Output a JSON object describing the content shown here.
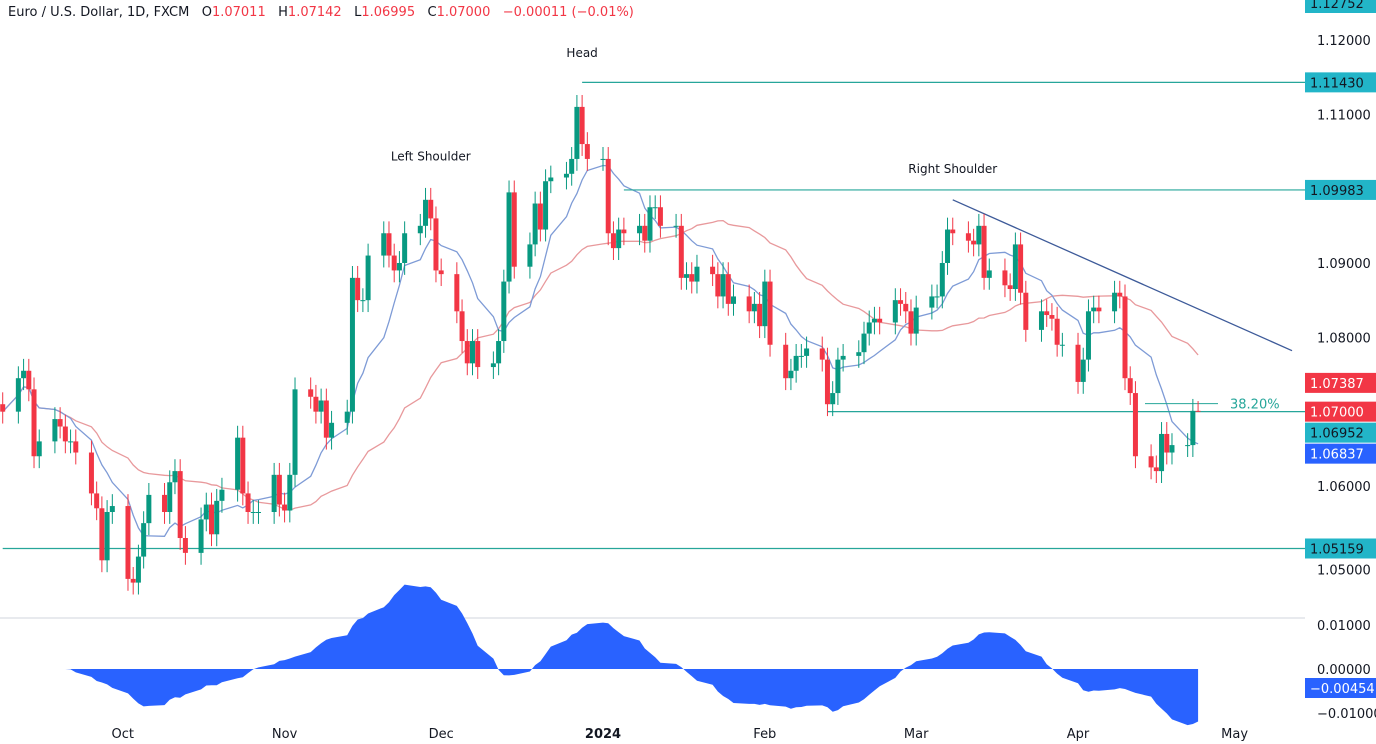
{
  "header": {
    "symbol": "Euro / U.S. Dollar, 1D, FXCM",
    "open_label": "O",
    "open": "1.07011",
    "high_label": "H",
    "high": "1.07142",
    "low_label": "L",
    "low": "1.06995",
    "close_label": "C",
    "close": "1.07000",
    "change": "−0.00011 (−0.01%)"
  },
  "chart_data": [
    {
      "type": "candlestick",
      "price_ticks": [
        "1.12000",
        "1.11000",
        "1.09000",
        "1.08000",
        "1.06000",
        "1.05000"
      ],
      "price_tick_values": [
        1.12,
        1.11,
        1.09,
        1.08,
        1.06,
        1.05
      ],
      "time_labels": [
        {
          "label": "Oct",
          "date": "2023-10-01"
        },
        {
          "label": "Nov",
          "date": "2023-11-01"
        },
        {
          "label": "Dec",
          "date": "2023-12-01"
        },
        {
          "label": "2024",
          "date": "2024-01-01",
          "bold": true
        },
        {
          "label": "Feb",
          "date": "2024-02-01"
        },
        {
          "label": "Mar",
          "date": "2024-03-01"
        },
        {
          "label": "Apr",
          "date": "2024-04-01"
        },
        {
          "label": "May",
          "date": "2024-05-01"
        }
      ],
      "colors": {
        "up": "#089981",
        "down": "#f23645",
        "fast_ma": "#7e9bd6",
        "slow_ma": "#e8999c",
        "level": "#26a69a",
        "trendline": "#3d5a99"
      },
      "weeks": [
        {
          "start": "2023-09-08",
          "close": [
            1.07
          ]
        },
        {
          "start": "2023-09-11",
          "close": [
            1.0745,
            1.0755,
            1.073,
            1.064,
            1.066
          ]
        },
        {
          "start": "2023-09-18",
          "close": [
            1.069,
            1.068,
            1.066,
            1.066,
            1.0645
          ]
        },
        {
          "start": "2023-09-25",
          "close": [
            1.059,
            1.057,
            1.05,
            1.0565,
            1.0573
          ]
        },
        {
          "start": "2023-10-02",
          "close": [
            1.0475,
            1.047,
            1.0505,
            1.055,
            1.0588
          ]
        },
        {
          "start": "2023-10-09",
          "close": [
            1.0565,
            1.0605,
            1.062,
            1.053,
            1.051
          ]
        },
        {
          "start": "2023-10-16",
          "close": [
            1.0555,
            1.0575,
            1.0535,
            1.058,
            1.0595
          ]
        },
        {
          "start": "2023-10-23",
          "close": [
            1.0665,
            1.059,
            1.0565,
            1.0565,
            1.0565
          ]
        },
        {
          "start": "2023-10-30",
          "close": [
            1.0615,
            1.0575,
            1.0567,
            1.0615,
            1.073
          ]
        },
        {
          "start": "2023-11-06",
          "close": [
            1.072,
            1.07,
            1.0715,
            1.0665,
            1.0685
          ]
        },
        {
          "start": "2023-11-13",
          "close": [
            1.07,
            1.088,
            1.085,
            1.085,
            1.091
          ]
        },
        {
          "start": "2023-11-20",
          "close": [
            1.094,
            1.091,
            1.089,
            1.09,
            1.094
          ]
        },
        {
          "start": "2023-11-27",
          "close": [
            1.095,
            1.0985,
            1.096,
            1.089,
            1.0885
          ]
        },
        {
          "start": "2023-12-04",
          "close": [
            1.0835,
            1.0795,
            1.0765,
            1.0795,
            1.076
          ]
        },
        {
          "start": "2023-12-11",
          "close": [
            1.0765,
            1.0795,
            1.0875,
            1.0995,
            1.0895
          ]
        },
        {
          "start": "2023-12-18",
          "close": [
            1.0925,
            1.098,
            1.0945,
            1.101,
            1.1015
          ]
        },
        {
          "start": "2023-12-25",
          "close": [
            1.102,
            1.104,
            1.111,
            1.106,
            1.104
          ]
        },
        {
          "start": "2024-01-01",
          "close": [
            1.104,
            1.094,
            1.092,
            1.0945,
            1.094
          ]
        },
        {
          "start": "2024-01-08",
          "close": [
            1.095,
            1.093,
            1.0975,
            1.0975,
            1.095
          ]
        },
        {
          "start": "2024-01-15",
          "close": [
            1.095,
            1.088,
            1.0885,
            1.0875,
            1.0895
          ]
        },
        {
          "start": "2024-01-22",
          "close": [
            1.0885,
            1.0855,
            1.0885,
            1.0845,
            1.0855
          ]
        },
        {
          "start": "2024-01-29",
          "close": [
            1.0835,
            1.0845,
            1.0815,
            1.0875,
            1.079
          ]
        },
        {
          "start": "2024-02-05",
          "close": [
            1.0745,
            1.0755,
            1.0775,
            1.0775,
            1.0785
          ]
        },
        {
          "start": "2024-02-12",
          "close": [
            1.077,
            1.071,
            1.0725,
            1.077,
            1.0775
          ]
        },
        {
          "start": "2024-02-19",
          "close": [
            1.078,
            1.0805,
            1.082,
            1.0825,
            1.082
          ]
        },
        {
          "start": "2024-02-26",
          "close": [
            1.085,
            1.0845,
            1.0835,
            1.0805,
            1.084
          ]
        },
        {
          "start": "2024-03-04",
          "close": [
            1.0855,
            1.0855,
            1.09,
            1.0945,
            1.094
          ]
        },
        {
          "start": "2024-03-11",
          "close": [
            1.093,
            1.0925,
            1.095,
            1.088,
            1.089
          ]
        },
        {
          "start": "2024-03-18",
          "close": [
            1.087,
            1.0865,
            1.0925,
            1.086,
            1.081
          ]
        },
        {
          "start": "2024-03-25",
          "close": [
            1.0835,
            1.083,
            1.0825,
            1.079,
            1.079
          ]
        },
        {
          "start": "2024-04-01",
          "close": [
            1.074,
            1.077,
            1.0835,
            1.084,
            1.0835
          ]
        },
        {
          "start": "2024-04-08",
          "close": [
            1.086,
            1.0855,
            1.0745,
            1.0725,
            1.064
          ]
        },
        {
          "start": "2024-04-15",
          "close": [
            1.0625,
            1.062,
            1.067,
            1.0645,
            1.0655
          ]
        },
        {
          "start": "2024-04-22",
          "close": [
            1.0655,
            1.07011,
            1.07
          ]
        }
      ],
      "levels": [
        {
          "price": 1.1143,
          "label": "1.11430",
          "from": "2023-12-28",
          "tag_color": "#22b5c8"
        },
        {
          "price": 1.09983,
          "label": "1.09983",
          "from": "2024-01-05",
          "tag_color": "#22b5c8"
        },
        {
          "price": 1.07,
          "label": "1.07000",
          "from": "2024-02-13",
          "fib_label": "38.20%",
          "tag_color": "#f23645"
        },
        {
          "price": 1.05159,
          "label": "1.05159",
          "from": "2023-09-08",
          "tag_color": "#22b5c8"
        }
      ],
      "trendline": {
        "from": {
          "date": "2024-03-08",
          "price": 1.0985
        },
        "to": {
          "date": "2024-05-12",
          "price": 1.0782
        }
      },
      "annotations": [
        {
          "text": "Head",
          "date": "2023-12-28",
          "price": 1.1177
        },
        {
          "text": "Left Shoulder",
          "date": "2023-11-29",
          "price": 1.1038
        },
        {
          "text": "Right Shoulder",
          "date": "2024-03-08",
          "price": 1.1021
        }
      ],
      "price_tags": [
        {
          "label": "1.12752",
          "price": 1.12752,
          "bg": "#22b5c8",
          "fg": "#131722"
        },
        {
          "label": "1.07387",
          "price": 1.07387,
          "bg": "#f23645",
          "fg": "#ffffff"
        },
        {
          "label": "1.06952",
          "price": 1.06952,
          "bg": "#22b5c8",
          "fg": "#131722"
        },
        {
          "label": "1.06837",
          "price": 1.06837,
          "bg": "#2962ff",
          "fg": "#ffffff"
        }
      ]
    },
    {
      "type": "area",
      "ticks": [
        "0.01000",
        "0.00000",
        "−0.01000"
      ],
      "tick_values": [
        0.01,
        0,
        -0.01
      ],
      "current": {
        "label": "−0.00454",
        "value": -0.00454
      },
      "color": "#2962ff"
    }
  ]
}
